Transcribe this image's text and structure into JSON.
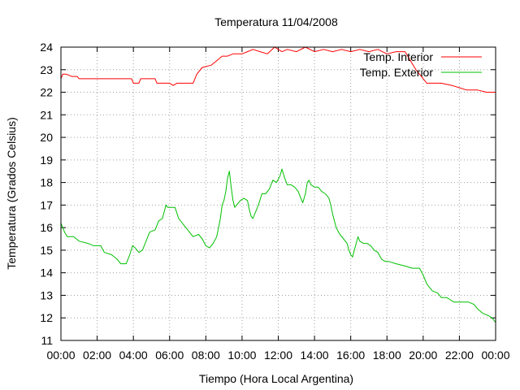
{
  "chart_data": {
    "type": "line",
    "title": "Temperatura 11/04/2008",
    "xlabel": "Tiempo (Hora Local Argentina)",
    "ylabel": "Temperatura (Grados Celsius)",
    "x_tick_labels": [
      "00:00",
      "02:00",
      "04:00",
      "06:00",
      "08:00",
      "10:00",
      "12:00",
      "14:00",
      "16:00",
      "18:00",
      "20:00",
      "22:00",
      "00:00"
    ],
    "y_tick_labels": [
      "11",
      "12",
      "13",
      "14",
      "15",
      "16",
      "17",
      "18",
      "19",
      "20",
      "21",
      "22",
      "23",
      "24"
    ],
    "xlim": [
      0,
      24
    ],
    "ylim": [
      11,
      24
    ],
    "grid": true,
    "legend_position": "top-right",
    "series": [
      {
        "name": "Temp. Interior",
        "color": "#ff0000",
        "points": [
          [
            0.0,
            22.6
          ],
          [
            0.1,
            22.8
          ],
          [
            0.3,
            22.8
          ],
          [
            0.6,
            22.7
          ],
          [
            0.9,
            22.7
          ],
          [
            1.0,
            22.6
          ],
          [
            2.0,
            22.6
          ],
          [
            3.0,
            22.6
          ],
          [
            3.9,
            22.6
          ],
          [
            4.0,
            22.4
          ],
          [
            4.3,
            22.4
          ],
          [
            4.4,
            22.6
          ],
          [
            5.2,
            22.6
          ],
          [
            5.3,
            22.4
          ],
          [
            6.0,
            22.4
          ],
          [
            6.2,
            22.3
          ],
          [
            6.4,
            22.4
          ],
          [
            7.0,
            22.4
          ],
          [
            7.3,
            22.4
          ],
          [
            7.5,
            22.8
          ],
          [
            7.8,
            23.1
          ],
          [
            8.3,
            23.2
          ],
          [
            8.6,
            23.4
          ],
          [
            8.9,
            23.6
          ],
          [
            9.2,
            23.6
          ],
          [
            9.5,
            23.7
          ],
          [
            10.0,
            23.7
          ],
          [
            10.3,
            23.8
          ],
          [
            10.6,
            23.9
          ],
          [
            11.0,
            23.8
          ],
          [
            11.4,
            23.7
          ],
          [
            11.8,
            24.0
          ],
          [
            12.2,
            23.8
          ],
          [
            12.5,
            23.9
          ],
          [
            13.0,
            23.8
          ],
          [
            13.5,
            24.0
          ],
          [
            14.0,
            23.8
          ],
          [
            14.5,
            23.9
          ],
          [
            15.0,
            23.8
          ],
          [
            15.5,
            23.9
          ],
          [
            16.0,
            23.8
          ],
          [
            16.5,
            23.9
          ],
          [
            17.0,
            23.8
          ],
          [
            17.5,
            23.9
          ],
          [
            18.0,
            23.7
          ],
          [
            18.5,
            23.8
          ],
          [
            19.0,
            23.8
          ],
          [
            19.3,
            23.4
          ],
          [
            19.6,
            23.0
          ],
          [
            19.9,
            22.7
          ],
          [
            20.2,
            22.4
          ],
          [
            21.0,
            22.4
          ],
          [
            21.6,
            22.3
          ],
          [
            22.0,
            22.2
          ],
          [
            22.4,
            22.1
          ],
          [
            23.0,
            22.1
          ],
          [
            23.5,
            22.0
          ],
          [
            24.0,
            22.0
          ]
        ]
      },
      {
        "name": "Temp. Exterior",
        "color": "#00c000",
        "points": [
          [
            0.0,
            16.2
          ],
          [
            0.1,
            16.0
          ],
          [
            0.2,
            15.8
          ],
          [
            0.35,
            15.6
          ],
          [
            0.7,
            15.6
          ],
          [
            1.0,
            15.4
          ],
          [
            1.5,
            15.3
          ],
          [
            1.8,
            15.2
          ],
          [
            2.2,
            15.2
          ],
          [
            2.4,
            14.9
          ],
          [
            2.8,
            14.8
          ],
          [
            3.1,
            14.6
          ],
          [
            3.3,
            14.4
          ],
          [
            3.6,
            14.4
          ],
          [
            3.8,
            14.8
          ],
          [
            3.95,
            15.2
          ],
          [
            4.1,
            15.1
          ],
          [
            4.3,
            14.9
          ],
          [
            4.5,
            15.0
          ],
          [
            4.7,
            15.4
          ],
          [
            4.9,
            15.8
          ],
          [
            5.2,
            15.9
          ],
          [
            5.4,
            16.3
          ],
          [
            5.6,
            16.4
          ],
          [
            5.7,
            16.7
          ],
          [
            5.8,
            17.0
          ],
          [
            5.9,
            16.9
          ],
          [
            6.1,
            16.9
          ],
          [
            6.3,
            16.9
          ],
          [
            6.5,
            16.4
          ],
          [
            6.8,
            16.1
          ],
          [
            7.0,
            15.9
          ],
          [
            7.3,
            15.6
          ],
          [
            7.6,
            15.7
          ],
          [
            7.8,
            15.5
          ],
          [
            8.0,
            15.2
          ],
          [
            8.2,
            15.1
          ],
          [
            8.4,
            15.3
          ],
          [
            8.6,
            15.6
          ],
          [
            8.8,
            16.4
          ],
          [
            8.9,
            17.0
          ],
          [
            9.0,
            17.2
          ],
          [
            9.1,
            17.6
          ],
          [
            9.2,
            18.2
          ],
          [
            9.3,
            18.5
          ],
          [
            9.4,
            17.8
          ],
          [
            9.5,
            17.2
          ],
          [
            9.6,
            16.9
          ],
          [
            9.7,
            17.0
          ],
          [
            9.9,
            17.2
          ],
          [
            10.1,
            17.3
          ],
          [
            10.3,
            17.2
          ],
          [
            10.4,
            16.8
          ],
          [
            10.5,
            16.5
          ],
          [
            10.6,
            16.4
          ],
          [
            10.7,
            16.6
          ],
          [
            10.9,
            17.0
          ],
          [
            11.1,
            17.5
          ],
          [
            11.3,
            17.5
          ],
          [
            11.5,
            17.7
          ],
          [
            11.7,
            18.1
          ],
          [
            11.9,
            18.0
          ],
          [
            12.1,
            18.3
          ],
          [
            12.2,
            18.6
          ],
          [
            12.35,
            18.2
          ],
          [
            12.5,
            17.9
          ],
          [
            12.7,
            17.9
          ],
          [
            12.9,
            17.8
          ],
          [
            13.1,
            17.6
          ],
          [
            13.2,
            17.4
          ],
          [
            13.35,
            17.1
          ],
          [
            13.5,
            17.5
          ],
          [
            13.6,
            18.0
          ],
          [
            13.7,
            18.1
          ],
          [
            13.8,
            17.9
          ],
          [
            14.0,
            17.8
          ],
          [
            14.2,
            17.8
          ],
          [
            14.4,
            17.6
          ],
          [
            14.6,
            17.5
          ],
          [
            14.8,
            17.3
          ],
          [
            14.9,
            17.0
          ],
          [
            15.0,
            16.6
          ],
          [
            15.2,
            16.0
          ],
          [
            15.4,
            15.7
          ],
          [
            15.6,
            15.5
          ],
          [
            15.8,
            15.3
          ],
          [
            15.9,
            15.0
          ],
          [
            16.0,
            14.8
          ],
          [
            16.1,
            14.7
          ],
          [
            16.2,
            15.0
          ],
          [
            16.3,
            15.3
          ],
          [
            16.4,
            15.6
          ],
          [
            16.5,
            15.4
          ],
          [
            16.7,
            15.3
          ],
          [
            16.9,
            15.3
          ],
          [
            17.1,
            15.2
          ],
          [
            17.3,
            15.0
          ],
          [
            17.5,
            14.9
          ],
          [
            17.7,
            14.6
          ],
          [
            17.9,
            14.5
          ],
          [
            18.1,
            14.5
          ],
          [
            18.5,
            14.4
          ],
          [
            19.0,
            14.3
          ],
          [
            19.4,
            14.2
          ],
          [
            19.8,
            14.2
          ],
          [
            20.0,
            13.9
          ],
          [
            20.2,
            13.5
          ],
          [
            20.5,
            13.2
          ],
          [
            20.8,
            13.1
          ],
          [
            21.0,
            12.9
          ],
          [
            21.3,
            12.9
          ],
          [
            21.5,
            12.8
          ],
          [
            21.7,
            12.7
          ],
          [
            22.0,
            12.7
          ],
          [
            22.5,
            12.7
          ],
          [
            22.8,
            12.6
          ],
          [
            23.0,
            12.4
          ],
          [
            23.3,
            12.2
          ],
          [
            23.6,
            12.1
          ],
          [
            23.8,
            12.0
          ],
          [
            24.0,
            11.8
          ]
        ]
      }
    ]
  }
}
